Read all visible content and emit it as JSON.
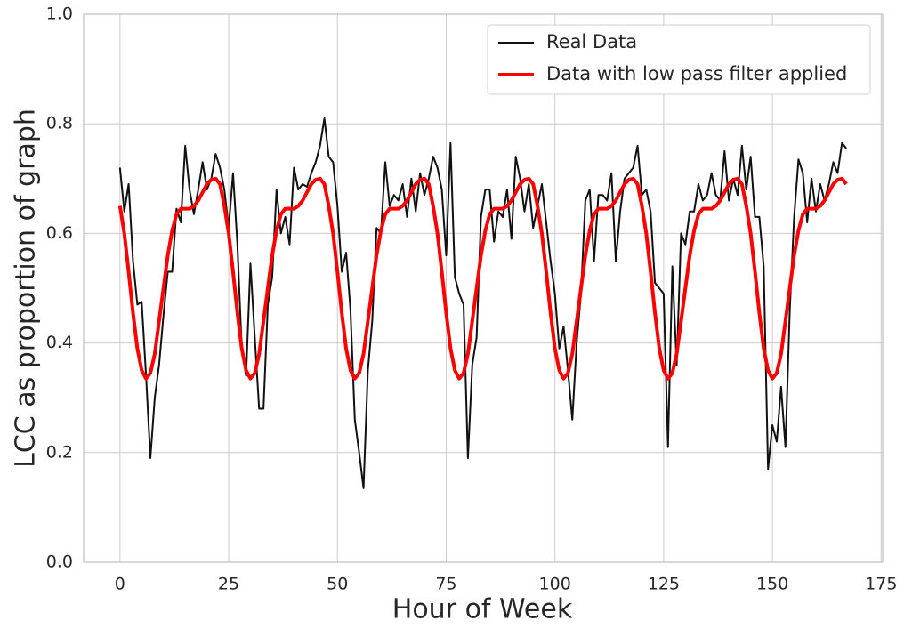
{
  "chart_data": {
    "type": "line",
    "xlabel": "Hour of Week",
    "ylabel": "LCC as proportion of graph",
    "x": [
      0,
      1,
      2,
      3,
      4,
      5,
      6,
      7,
      8,
      9,
      10,
      11,
      12,
      13,
      14,
      15,
      16,
      17,
      18,
      19,
      20,
      21,
      22,
      23,
      24,
      25,
      26,
      27,
      28,
      29,
      30,
      31,
      32,
      33,
      34,
      35,
      36,
      37,
      38,
      39,
      40,
      41,
      42,
      43,
      44,
      45,
      46,
      47,
      48,
      49,
      50,
      51,
      52,
      53,
      54,
      55,
      56,
      57,
      58,
      59,
      60,
      61,
      62,
      63,
      64,
      65,
      66,
      67,
      68,
      69,
      70,
      71,
      72,
      73,
      74,
      75,
      76,
      77,
      78,
      79,
      80,
      81,
      82,
      83,
      84,
      85,
      86,
      87,
      88,
      89,
      90,
      91,
      92,
      93,
      94,
      95,
      96,
      97,
      98,
      99,
      100,
      101,
      102,
      103,
      104,
      105,
      106,
      107,
      108,
      109,
      110,
      111,
      112,
      113,
      114,
      115,
      116,
      117,
      118,
      119,
      120,
      121,
      122,
      123,
      124,
      125,
      126,
      127,
      128,
      129,
      130,
      131,
      132,
      133,
      134,
      135,
      136,
      137,
      138,
      139,
      140,
      141,
      142,
      143,
      144,
      145,
      146,
      147,
      148,
      149,
      150,
      151,
      152,
      153,
      154,
      155,
      156,
      157,
      158,
      159,
      160,
      161,
      162,
      163,
      164,
      165,
      166,
      167
    ],
    "series": [
      {
        "name": "Real Data",
        "color": "#111111",
        "width": 2,
        "values": [
          0.72,
          0.64,
          0.69,
          0.55,
          0.47,
          0.475,
          0.34,
          0.19,
          0.3,
          0.36,
          0.45,
          0.53,
          0.53,
          0.645,
          0.62,
          0.76,
          0.68,
          0.635,
          0.68,
          0.73,
          0.68,
          0.7,
          0.745,
          0.72,
          0.68,
          0.61,
          0.71,
          0.58,
          0.39,
          0.34,
          0.545,
          0.41,
          0.28,
          0.28,
          0.47,
          0.52,
          0.68,
          0.6,
          0.63,
          0.58,
          0.72,
          0.68,
          0.69,
          0.685,
          0.71,
          0.73,
          0.76,
          0.81,
          0.74,
          0.73,
          0.65,
          0.53,
          0.565,
          0.46,
          0.26,
          0.2,
          0.135,
          0.35,
          0.44,
          0.61,
          0.6,
          0.73,
          0.65,
          0.67,
          0.66,
          0.69,
          0.63,
          0.7,
          0.64,
          0.71,
          0.67,
          0.7,
          0.74,
          0.72,
          0.68,
          0.56,
          0.765,
          0.52,
          0.49,
          0.47,
          0.19,
          0.36,
          0.41,
          0.63,
          0.68,
          0.68,
          0.585,
          0.64,
          0.63,
          0.68,
          0.59,
          0.74,
          0.7,
          0.64,
          0.69,
          0.61,
          0.65,
          0.69,
          0.62,
          0.55,
          0.49,
          0.39,
          0.43,
          0.35,
          0.26,
          0.4,
          0.49,
          0.66,
          0.68,
          0.55,
          0.67,
          0.67,
          0.66,
          0.71,
          0.55,
          0.64,
          0.7,
          0.71,
          0.72,
          0.76,
          0.67,
          0.68,
          0.64,
          0.51,
          0.5,
          0.49,
          0.21,
          0.54,
          0.36,
          0.6,
          0.58,
          0.64,
          0.64,
          0.69,
          0.66,
          0.67,
          0.71,
          0.67,
          0.66,
          0.75,
          0.66,
          0.7,
          0.67,
          0.76,
          0.68,
          0.74,
          0.63,
          0.63,
          0.54,
          0.17,
          0.25,
          0.22,
          0.32,
          0.21,
          0.46,
          0.63,
          0.735,
          0.71,
          0.62,
          0.7,
          0.64,
          0.69,
          0.66,
          0.69,
          0.73,
          0.71,
          0.765,
          0.755
        ]
      },
      {
        "name": "Data with low pass filter applied",
        "color": "#ff0000",
        "width": 4,
        "values": [
          0.65,
          0.6,
          0.53,
          0.455,
          0.39,
          0.35,
          0.335,
          0.345,
          0.38,
          0.44,
          0.5,
          0.56,
          0.605,
          0.635,
          0.645,
          0.645,
          0.645,
          0.65,
          0.66,
          0.675,
          0.69,
          0.698,
          0.7,
          0.69,
          0.65,
          0.6,
          0.53,
          0.455,
          0.39,
          0.35,
          0.335,
          0.345,
          0.38,
          0.44,
          0.5,
          0.56,
          0.605,
          0.635,
          0.645,
          0.645,
          0.645,
          0.65,
          0.66,
          0.675,
          0.69,
          0.698,
          0.7,
          0.69,
          0.65,
          0.6,
          0.53,
          0.455,
          0.39,
          0.35,
          0.335,
          0.345,
          0.38,
          0.44,
          0.5,
          0.56,
          0.605,
          0.635,
          0.645,
          0.645,
          0.645,
          0.65,
          0.66,
          0.675,
          0.69,
          0.698,
          0.7,
          0.69,
          0.65,
          0.6,
          0.53,
          0.455,
          0.39,
          0.35,
          0.335,
          0.345,
          0.38,
          0.44,
          0.5,
          0.56,
          0.605,
          0.635,
          0.645,
          0.645,
          0.645,
          0.65,
          0.66,
          0.675,
          0.69,
          0.698,
          0.7,
          0.69,
          0.65,
          0.6,
          0.53,
          0.455,
          0.39,
          0.35,
          0.335,
          0.345,
          0.38,
          0.44,
          0.5,
          0.56,
          0.605,
          0.635,
          0.645,
          0.645,
          0.645,
          0.65,
          0.66,
          0.675,
          0.69,
          0.698,
          0.7,
          0.69,
          0.65,
          0.6,
          0.53,
          0.455,
          0.39,
          0.35,
          0.335,
          0.345,
          0.38,
          0.44,
          0.5,
          0.56,
          0.605,
          0.635,
          0.645,
          0.645,
          0.645,
          0.65,
          0.66,
          0.675,
          0.69,
          0.698,
          0.7,
          0.69,
          0.65,
          0.6,
          0.53,
          0.455,
          0.39,
          0.35,
          0.335,
          0.345,
          0.38,
          0.44,
          0.5,
          0.56,
          0.605,
          0.635,
          0.645,
          0.645,
          0.645,
          0.65,
          0.66,
          0.675,
          0.69,
          0.698,
          0.7,
          0.69
        ]
      }
    ],
    "xlim": [
      -8.35,
      175.35
    ],
    "xticks": [
      0,
      25,
      50,
      75,
      100,
      125,
      150,
      175
    ],
    "ylim": [
      0,
      1
    ],
    "yticks": [
      {
        "value": 0,
        "label": "0.0"
      },
      0.2,
      0.4,
      0.6,
      0.8,
      {
        "value": 1,
        "label": "1.0"
      }
    ],
    "grid": true,
    "legend": "upper-right"
  }
}
